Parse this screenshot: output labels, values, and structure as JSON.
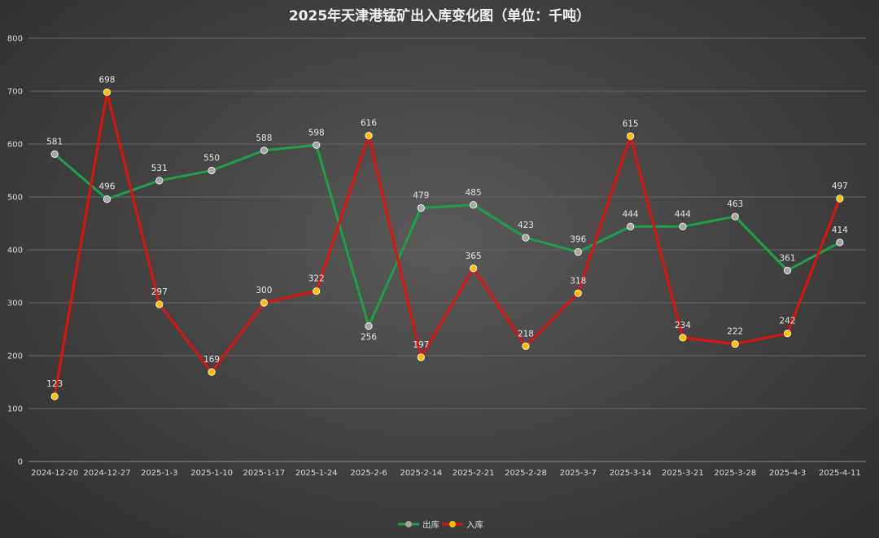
{
  "chart_data": {
    "type": "line",
    "title": "2025年天津港锰矿出入库变化图（单位：千吨）",
    "xlabel": "",
    "ylabel": "",
    "ylim": [
      0,
      800
    ],
    "yticks": [
      0,
      100,
      200,
      300,
      400,
      500,
      600,
      700,
      800
    ],
    "grid": true,
    "legend_position": "bottom",
    "categories": [
      "2024-12-20",
      "2024-12-27",
      "2025-1-3",
      "2025-1-10",
      "2025-1-17",
      "2025-1-24",
      "2025-2-6",
      "2025-2-14",
      "2025-2-21",
      "2025-2-28",
      "2025-3-7",
      "2025-3-14",
      "2025-3-21",
      "2025-3-28",
      "2025-4-3",
      "2025-4-11"
    ],
    "series": [
      {
        "name": "出库",
        "color": "#1ea04a",
        "marker_color": "#a6a6a6",
        "values": [
          581,
          496,
          531,
          550,
          588,
          598,
          256,
          479,
          485,
          423,
          396,
          444,
          444,
          463,
          361,
          414
        ]
      },
      {
        "name": "入库",
        "color": "#e0120f",
        "marker_color": "#ffc000",
        "values": [
          123,
          698,
          297,
          169,
          300,
          322,
          616,
          197,
          365,
          218,
          318,
          615,
          234,
          222,
          242,
          497
        ]
      }
    ]
  }
}
